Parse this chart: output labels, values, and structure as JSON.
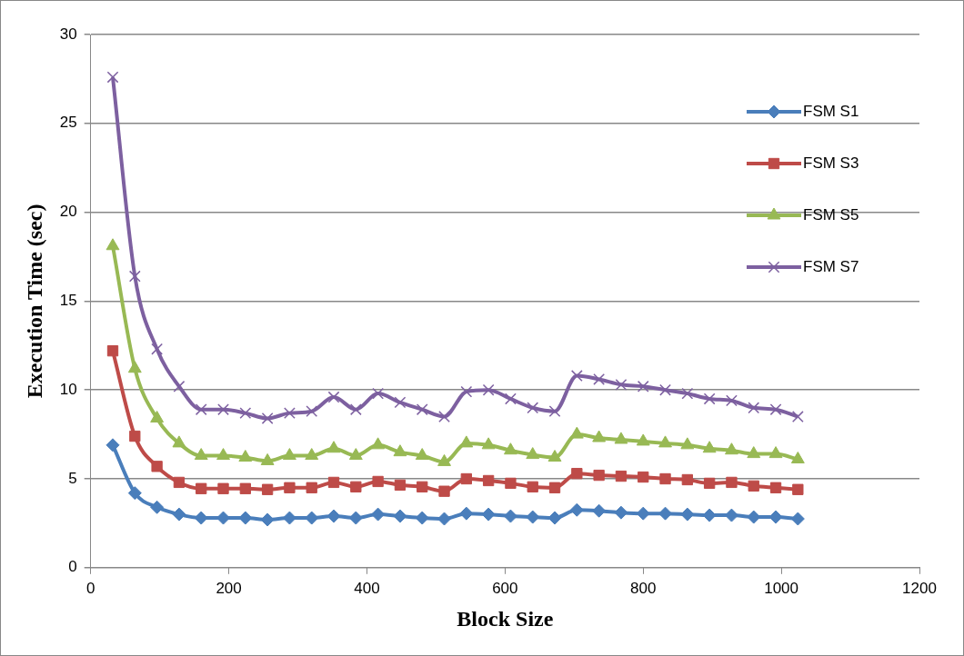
{
  "chart_data": {
    "type": "line",
    "xlabel": "Block Size",
    "ylabel": "Execution Time (sec)",
    "x": [
      32,
      64,
      96,
      128,
      160,
      192,
      224,
      256,
      288,
      320,
      352,
      384,
      416,
      448,
      480,
      512,
      544,
      576,
      608,
      640,
      672,
      704,
      736,
      768,
      800,
      832,
      864,
      896,
      928,
      960,
      992,
      1024
    ],
    "xlim": [
      0,
      1200
    ],
    "xticks": [
      0,
      200,
      400,
      600,
      800,
      1000,
      1200
    ],
    "ylim": [
      0,
      30
    ],
    "yticks": [
      0,
      5,
      10,
      15,
      20,
      25,
      30
    ],
    "grid": "y",
    "legend": "top right",
    "line_style": "solid",
    "series": [
      {
        "name": "FSM S1",
        "color": "#4a7ebb",
        "marker": "diamond",
        "values": [
          6.9,
          4.2,
          3.4,
          3.0,
          2.8,
          2.8,
          2.8,
          2.7,
          2.8,
          2.8,
          2.9,
          2.8,
          3.0,
          2.9,
          2.8,
          2.75,
          3.05,
          3.0,
          2.9,
          2.85,
          2.8,
          3.25,
          3.2,
          3.1,
          3.05,
          3.05,
          3.0,
          2.95,
          2.95,
          2.85,
          2.85,
          2.75
        ]
      },
      {
        "name": "FSM S3",
        "color": "#be4b48",
        "marker": "square",
        "values": [
          12.2,
          7.4,
          5.7,
          4.8,
          4.45,
          4.45,
          4.45,
          4.4,
          4.5,
          4.5,
          4.8,
          4.55,
          4.85,
          4.65,
          4.55,
          4.3,
          5.0,
          4.9,
          4.75,
          4.55,
          4.5,
          5.3,
          5.2,
          5.15,
          5.1,
          5.0,
          4.95,
          4.75,
          4.8,
          4.6,
          4.5,
          4.4
        ]
      },
      {
        "name": "FSM S5",
        "color": "#98b954",
        "marker": "triangle",
        "values": [
          18.1,
          11.2,
          8.4,
          7.0,
          6.3,
          6.3,
          6.2,
          6.0,
          6.3,
          6.3,
          6.7,
          6.3,
          6.9,
          6.5,
          6.3,
          5.95,
          7.0,
          6.9,
          6.6,
          6.35,
          6.2,
          7.5,
          7.3,
          7.2,
          7.1,
          7.0,
          6.9,
          6.7,
          6.6,
          6.4,
          6.4,
          6.1
        ]
      },
      {
        "name": "FSM S7",
        "color": "#7d60a0",
        "marker": "cross",
        "values": [
          27.6,
          16.4,
          12.3,
          10.2,
          8.9,
          8.9,
          8.7,
          8.4,
          8.7,
          8.8,
          9.6,
          8.9,
          9.8,
          9.3,
          8.9,
          8.5,
          9.9,
          10.0,
          9.5,
          9.0,
          8.8,
          10.8,
          10.6,
          10.3,
          10.2,
          10.0,
          9.8,
          9.5,
          9.4,
          9.0,
          8.9,
          8.5
        ]
      }
    ]
  }
}
